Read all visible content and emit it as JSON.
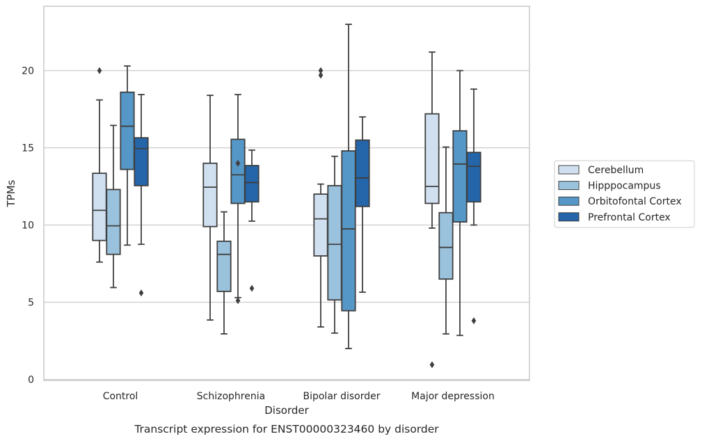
{
  "chart_data": {
    "type": "boxplot",
    "title": "",
    "caption": "Transcript expression for ENST00000323460 by disorder",
    "xlabel": "Disorder",
    "ylabel": "TPMs",
    "ylim": [
      -0.2,
      24.0
    ],
    "yticks": [
      0,
      5,
      10,
      15,
      20
    ],
    "grid": "horizontal",
    "legend_placement": "right",
    "categories": [
      "Control",
      "Schizophrenia",
      "Bipolar disorder",
      "Major depression"
    ],
    "series": [
      {
        "name": "Cerebellum",
        "color": "#d1e0f0",
        "boxes": [
          {
            "whislo": 7.6,
            "q1": 9.0,
            "med": 10.95,
            "q3": 13.35,
            "whishi": 18.1,
            "fliers": [
              20.0
            ]
          },
          {
            "whislo": 3.85,
            "q1": 9.9,
            "med": 12.45,
            "q3": 14.0,
            "whishi": 18.4,
            "fliers": []
          },
          {
            "whislo": 3.4,
            "q1": 8.0,
            "med": 10.4,
            "q3": 12.0,
            "whishi": 12.65,
            "fliers": [
              20.0,
              19.7
            ]
          },
          {
            "whislo": 9.8,
            "q1": 11.4,
            "med": 12.5,
            "q3": 17.2,
            "whishi": 21.2,
            "fliers": [
              0.95
            ]
          }
        ]
      },
      {
        "name": "Hipppocampus",
        "color": "#9ac2dc",
        "boxes": [
          {
            "whislo": 5.95,
            "q1": 8.1,
            "med": 9.95,
            "q3": 12.3,
            "whishi": 16.45,
            "fliers": []
          },
          {
            "whislo": 2.95,
            "q1": 5.7,
            "med": 8.1,
            "q3": 8.95,
            "whishi": 10.85,
            "fliers": []
          },
          {
            "whislo": 3.0,
            "q1": 5.15,
            "med": 8.75,
            "q3": 12.55,
            "whishi": 14.45,
            "fliers": []
          },
          {
            "whislo": 2.95,
            "q1": 6.5,
            "med": 8.55,
            "q3": 10.8,
            "whishi": 15.05,
            "fliers": []
          }
        ]
      },
      {
        "name": "Orbitofontal Cortex",
        "color": "#5597c6",
        "boxes": [
          {
            "whislo": 8.7,
            "q1": 13.6,
            "med": 16.4,
            "q3": 18.6,
            "whishi": 20.3,
            "fliers": []
          },
          {
            "whislo": 5.3,
            "q1": 11.4,
            "med": 13.25,
            "q3": 15.55,
            "whishi": 18.45,
            "fliers": [
              14.0,
              5.1
            ]
          },
          {
            "whislo": 2.0,
            "q1": 4.45,
            "med": 9.75,
            "q3": 14.8,
            "whishi": 23.0,
            "fliers": []
          },
          {
            "whislo": 2.85,
            "q1": 10.2,
            "med": 13.95,
            "q3": 16.1,
            "whishi": 20.0,
            "fliers": []
          }
        ]
      },
      {
        "name": "Prefrontal Cortex",
        "color": "#2565a9",
        "boxes": [
          {
            "whislo": 8.75,
            "q1": 12.55,
            "med": 14.95,
            "q3": 15.65,
            "whishi": 18.45,
            "fliers": [
              5.6
            ]
          },
          {
            "whislo": 10.25,
            "q1": 11.5,
            "med": 12.75,
            "q3": 13.85,
            "whishi": 14.85,
            "fliers": [
              5.9
            ]
          },
          {
            "whislo": 5.65,
            "q1": 11.2,
            "med": 13.05,
            "q3": 15.5,
            "whishi": 17.0,
            "fliers": []
          },
          {
            "whislo": 10.0,
            "q1": 11.5,
            "med": 13.8,
            "q3": 14.7,
            "whishi": 18.8,
            "fliers": [
              3.8
            ]
          }
        ]
      }
    ]
  }
}
